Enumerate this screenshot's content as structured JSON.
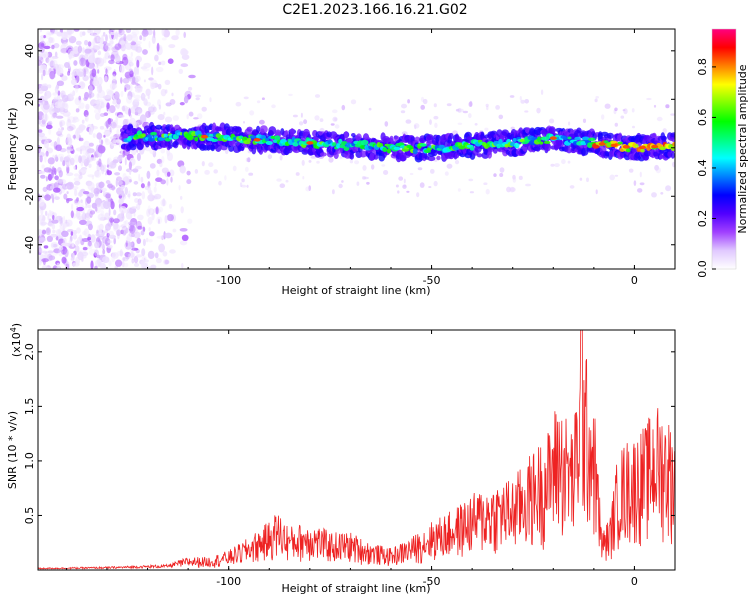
{
  "title": "C2E1.2023.166.16.21.G02",
  "chart_data": [
    {
      "type": "heatmap",
      "title": "C2E1.2023.166.16.21.G02",
      "xlabel": "Height of straight line (km)",
      "ylabel": "Frequency (Hz)",
      "xlim": [
        -147,
        10
      ],
      "ylim": [
        -50,
        49
      ],
      "xticks": [
        "-100",
        "-50",
        "0"
      ],
      "xtick_values": [
        -100,
        -50,
        0
      ],
      "yticks": [
        "40",
        "20",
        "0",
        "-20",
        "-40"
      ],
      "ytick_values": [
        40,
        20,
        0,
        -20,
        -40
      ],
      "colorbar": {
        "label": "Normalized spectral amplitude",
        "range": [
          0.0,
          0.95
        ],
        "ticks": [
          "0.0",
          "0.2",
          "0.4",
          "0.6",
          "0.8"
        ],
        "tick_values": [
          0.0,
          0.2,
          0.4,
          0.6,
          0.8
        ],
        "colormap": [
          "#ffffff",
          "#e0c8ff",
          "#a040ff",
          "#5000ff",
          "#0000ff",
          "#0080ff",
          "#00ffff",
          "#00ff80",
          "#00ff00",
          "#80ff00",
          "#ffff00",
          "#ff8000",
          "#ff0000",
          "#ff0080"
        ]
      },
      "band": [
        {
          "x": -125,
          "f": 4.5
        },
        {
          "x": -110,
          "f": 5
        },
        {
          "x": -100,
          "f": 4
        },
        {
          "x": -90,
          "f": 3
        },
        {
          "x": -80,
          "f": 2
        },
        {
          "x": -70,
          "f": 1
        },
        {
          "x": -60,
          "f": 0
        },
        {
          "x": -50,
          "f": 0
        },
        {
          "x": -40,
          "f": 1
        },
        {
          "x": -30,
          "f": 2
        },
        {
          "x": -20,
          "f": 4
        },
        {
          "x": -10,
          "f": 2
        },
        {
          "x": 0,
          "f": 0
        },
        {
          "x": 10,
          "f": 1
        }
      ]
    },
    {
      "type": "line",
      "xlabel": "Height of straight line (km)",
      "ylabel": "SNR (10 * v/v)",
      "y_multiplier": "(x10",
      "y_multiplier_exp": "4",
      "y_multiplier_close": ")",
      "xlim": [
        -147,
        10
      ],
      "ylim": [
        0.0,
        2.2
      ],
      "xticks": [
        "-100",
        "-50",
        "0"
      ],
      "xtick_values": [
        -100,
        -50,
        0
      ],
      "yticks": [
        "0.5",
        "1.0",
        "1.5",
        "2.0"
      ],
      "ytick_values": [
        0.5,
        1.0,
        1.5,
        2.0
      ],
      "series": [
        {
          "color": "#ee2222",
          "envelope": [
            [
              -147,
              0.02
            ],
            [
              -130,
              0.03
            ],
            [
              -115,
              0.05
            ],
            [
              -110,
              0.12
            ],
            [
              -105,
              0.12
            ],
            [
              -100,
              0.18
            ],
            [
              -95,
              0.3
            ],
            [
              -90,
              0.45
            ],
            [
              -88,
              0.55
            ],
            [
              -85,
              0.4
            ],
            [
              -80,
              0.45
            ],
            [
              -75,
              0.35
            ],
            [
              -70,
              0.35
            ],
            [
              -65,
              0.25
            ],
            [
              -60,
              0.2
            ],
            [
              -55,
              0.3
            ],
            [
              -50,
              0.45
            ],
            [
              -45,
              0.55
            ],
            [
              -40,
              0.7
            ],
            [
              -35,
              0.8
            ],
            [
              -30,
              0.85
            ],
            [
              -25,
              1.1
            ],
            [
              -21,
              1.3
            ],
            [
              -19,
              1.6
            ],
            [
              -15,
              1.3
            ],
            [
              -13,
              2.2
            ],
            [
              -10,
              1.6
            ],
            [
              -8,
              0.35
            ],
            [
              -6,
              0.5
            ],
            [
              -4,
              1.1
            ],
            [
              -2,
              1.2
            ],
            [
              0,
              1.25
            ],
            [
              3,
              1.35
            ],
            [
              5,
              1.55
            ],
            [
              8,
              1.45
            ],
            [
              10,
              1.3
            ]
          ]
        }
      ]
    }
  ]
}
